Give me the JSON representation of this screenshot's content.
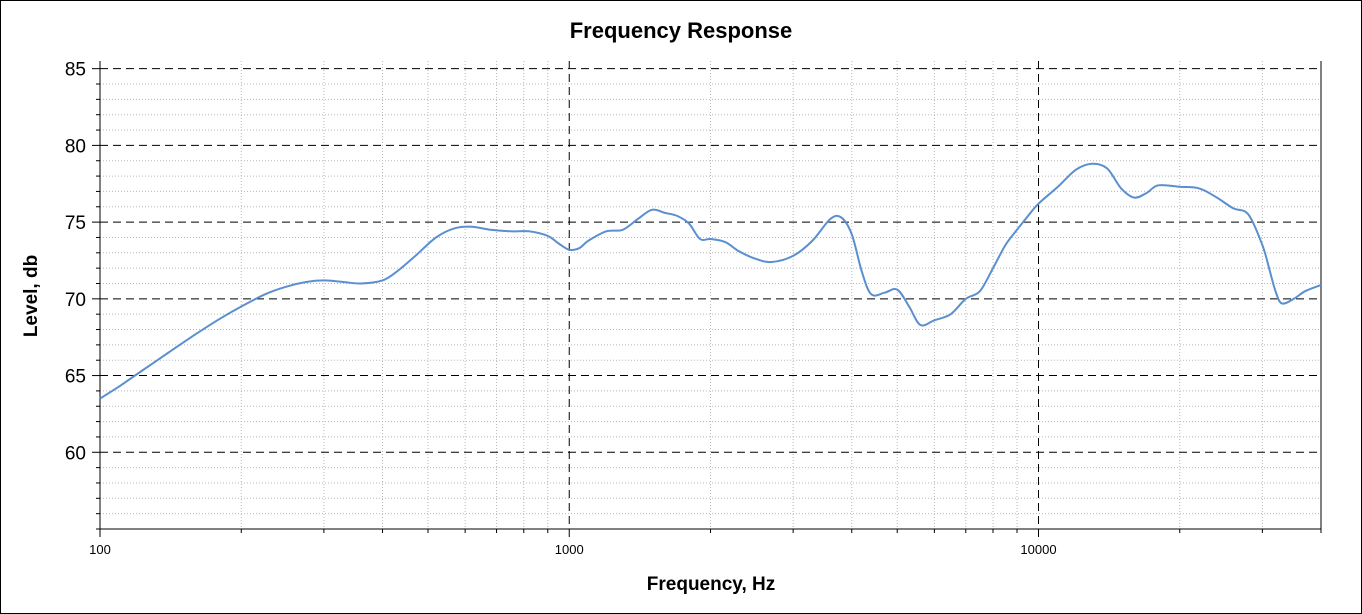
{
  "chart_data": {
    "type": "line",
    "title": "Frequency Response",
    "xlabel": "Frequency, Hz",
    "ylabel": "Level, db",
    "x_scale": "log",
    "xlim": [
      100,
      40000
    ],
    "ylim": [
      55,
      85.5
    ],
    "x_ticks": [
      100,
      1000,
      10000
    ],
    "x_tick_labels": [
      "100",
      "1000",
      "10000"
    ],
    "y_ticks": [
      60,
      65,
      70,
      75,
      80,
      85
    ],
    "y_tick_labels": [
      "60",
      "65",
      "70",
      "75",
      "80",
      "85"
    ],
    "grid": true,
    "line_color": "#5b8fd0",
    "series": [
      {
        "x": [
          100,
          110,
          120,
          140,
          160,
          180,
          200,
          225,
          250,
          275,
          300,
          330,
          360,
          400,
          430,
          470,
          520,
          570,
          620,
          680,
          750,
          820,
          900,
          950,
          1000,
          1050,
          1100,
          1200,
          1300,
          1400,
          1500,
          1600,
          1700,
          1800,
          1900,
          2000,
          2150,
          2300,
          2500,
          2700,
          3000,
          3300,
          3600,
          3800,
          4000,
          4200,
          4400,
          4700,
          5000,
          5300,
          5600,
          6000,
          6500,
          7000,
          7500,
          8000,
          8500,
          9000,
          9500,
          10000,
          11000,
          12000,
          13000,
          14000,
          15000,
          16000,
          17000,
          18000,
          20000,
          22000,
          24000,
          26000,
          28000,
          30000,
          31000,
          32000,
          33000,
          35000,
          37000,
          40000
        ],
        "y": [
          63.5,
          64.3,
          65.1,
          66.5,
          67.7,
          68.7,
          69.5,
          70.3,
          70.8,
          71.1,
          71.2,
          71.1,
          71.0,
          71.2,
          71.8,
          72.8,
          74.0,
          74.6,
          74.7,
          74.5,
          74.4,
          74.4,
          74.1,
          73.6,
          73.2,
          73.3,
          73.8,
          74.4,
          74.5,
          75.2,
          75.8,
          75.6,
          75.4,
          74.9,
          73.9,
          73.9,
          73.7,
          73.1,
          72.6,
          72.4,
          72.8,
          73.8,
          75.2,
          75.3,
          74.2,
          71.8,
          70.3,
          70.4,
          70.6,
          69.5,
          68.3,
          68.6,
          69.0,
          70.0,
          70.5,
          72.0,
          73.5,
          74.5,
          75.4,
          76.2,
          77.3,
          78.4,
          78.8,
          78.5,
          77.2,
          76.6,
          76.9,
          77.4,
          77.3,
          77.2,
          76.6,
          75.9,
          75.5,
          73.5,
          72.0,
          70.5,
          69.7,
          70.0,
          70.5,
          70.9
        ]
      }
    ]
  }
}
